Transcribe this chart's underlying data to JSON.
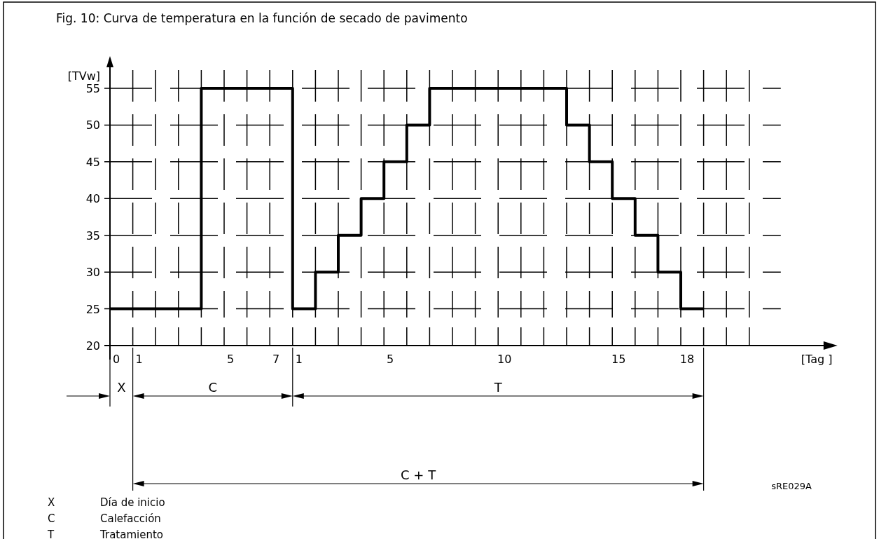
{
  "chart_data": {
    "type": "step",
    "title": "Fig. 10:  Curva de temperatura en la función de secado de pavimento",
    "xlabel": "[Tag ]",
    "ylabel": "[TVw]",
    "categories": [
      "0",
      "1",
      null,
      null,
      null,
      "5",
      null,
      "7",
      "1",
      null,
      null,
      null,
      "5",
      null,
      null,
      null,
      null,
      "10",
      null,
      null,
      null,
      null,
      "15",
      null,
      null,
      "18",
      null,
      null,
      null
    ],
    "series": [
      {
        "color": "#000000",
        "values": [
          25,
          25,
          25,
          25,
          55,
          55,
          55,
          55,
          25,
          30,
          35,
          40,
          45,
          50,
          55,
          55,
          55,
          55,
          55,
          55,
          50,
          45,
          40,
          35,
          30,
          25,
          25,
          null,
          null
        ]
      }
    ],
    "ylim": [
      20,
      59
    ],
    "yticks": [
      20,
      25,
      30,
      35,
      40,
      45,
      50,
      55
    ],
    "grid": true,
    "annotations": [
      "X",
      "C",
      "T",
      "C + T",
      "sRE029A",
      "X",
      "Día de inicio",
      "C",
      "Calefacción",
      "T",
      "Tratamiento"
    ]
  }
}
